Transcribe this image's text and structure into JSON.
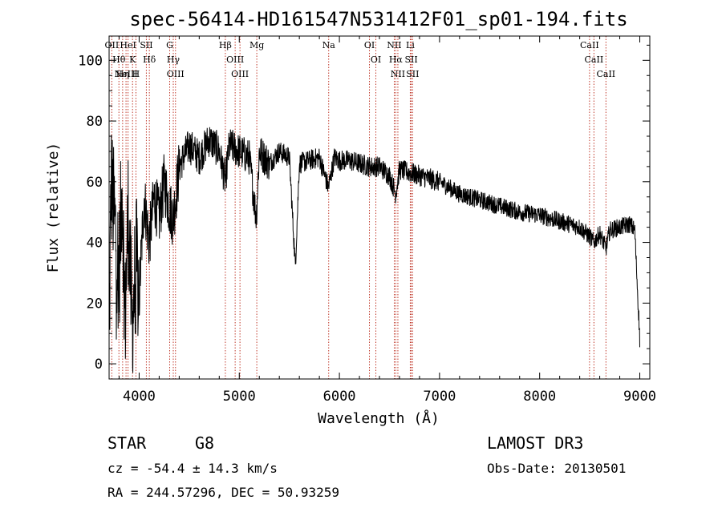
{
  "chart_data": {
    "type": "line",
    "title": "spec-56414-HD161547N531412F01_sp01-194.fits",
    "xlabel": "Wavelength (Å)",
    "ylabel": "Flux (relative)",
    "xlim": [
      3700,
      9100
    ],
    "ylim": [
      -5,
      108
    ],
    "x_ticks": [
      4000,
      5000,
      6000,
      7000,
      8000,
      9000
    ],
    "x_tick_labels": [
      "4000",
      "5000",
      "6000",
      "7000",
      "8000",
      "9000"
    ],
    "y_ticks": [
      0,
      20,
      40,
      60,
      80,
      100
    ],
    "y_tick_labels": [
      "0",
      "20",
      "40",
      "60",
      "80",
      "100"
    ],
    "spectrum_anchors": {
      "x": [
        3700,
        3720,
        3760,
        3800,
        3830,
        3860,
        3890,
        3930,
        3970,
        4000,
        4050,
        4100,
        4150,
        4200,
        4250,
        4300,
        4340,
        4400,
        4500,
        4600,
        4700,
        4800,
        4860,
        4900,
        5000,
        5100,
        5170,
        5200,
        5300,
        5400,
        5500,
        5560,
        5600,
        5700,
        5800,
        5890,
        5950,
        6000,
        6100,
        6200,
        6300,
        6400,
        6500,
        6563,
        6600,
        6700,
        6800,
        7000,
        7200,
        7400,
        7600,
        7800,
        8000,
        8200,
        8400,
        8498,
        8542,
        8600,
        8662,
        8700,
        8800,
        8900,
        8950,
        9000
      ],
      "y": [
        5,
        60,
        45,
        30,
        60,
        15,
        50,
        12,
        35,
        22,
        55,
        40,
        55,
        48,
        60,
        52,
        48,
        65,
        72,
        68,
        74,
        70,
        60,
        72,
        70,
        68,
        48,
        70,
        66,
        70,
        68,
        32,
        66,
        67,
        68,
        58,
        68,
        67,
        67,
        66,
        65,
        65,
        62,
        56,
        64,
        63,
        62,
        60,
        56,
        54,
        52,
        50,
        49,
        47,
        45,
        42,
        40,
        43,
        38,
        44,
        45,
        46,
        44,
        8
      ]
    },
    "emission_lines": [
      {
        "wavelength": 3727,
        "label": "OII"
      },
      {
        "wavelength": 3798,
        "label": "Hθ"
      },
      {
        "wavelength": 3835,
        "label": "Hη"
      },
      {
        "wavelength": 3869,
        "label": "NeIII"
      },
      {
        "wavelength": 3889,
        "label": "HeI"
      },
      {
        "wavelength": 3934,
        "label": "K"
      },
      {
        "wavelength": 3968,
        "label": "H"
      },
      {
        "wavelength": 4072,
        "label": "SII"
      },
      {
        "wavelength": 4102,
        "label": "Hδ"
      },
      {
        "wavelength": 4305,
        "label": "G"
      },
      {
        "wavelength": 4341,
        "label": "Hγ"
      },
      {
        "wavelength": 4363,
        "label": "OIII"
      },
      {
        "wavelength": 4861,
        "label": "Hβ"
      },
      {
        "wavelength": 4959,
        "label": "OIII"
      },
      {
        "wavelength": 5007,
        "label": "OIII"
      },
      {
        "wavelength": 5175,
        "label": "Mg"
      },
      {
        "wavelength": 5893,
        "label": "Na"
      },
      {
        "wavelength": 6300,
        "label": "OI"
      },
      {
        "wavelength": 6364,
        "label": "OI"
      },
      {
        "wavelength": 6548,
        "label": "NII"
      },
      {
        "wavelength": 6563,
        "label": "Hα"
      },
      {
        "wavelength": 6584,
        "label": "NII"
      },
      {
        "wavelength": 6708,
        "label": "Li"
      },
      {
        "wavelength": 6717,
        "label": "SII"
      },
      {
        "wavelength": 6731,
        "label": "SII"
      },
      {
        "wavelength": 8498,
        "label": "CaII"
      },
      {
        "wavelength": 8542,
        "label": "CaII"
      },
      {
        "wavelength": 8662,
        "label": "CaII"
      }
    ]
  },
  "info": {
    "object_class": "STAR",
    "subclass": "G8",
    "survey": "LAMOST DR3",
    "redshift": "cz = -54.4 ± 14.3 km/s",
    "obs_date": "Obs-Date: 20130501",
    "coords": "RA = 244.57296, DEC =  50.93259"
  }
}
